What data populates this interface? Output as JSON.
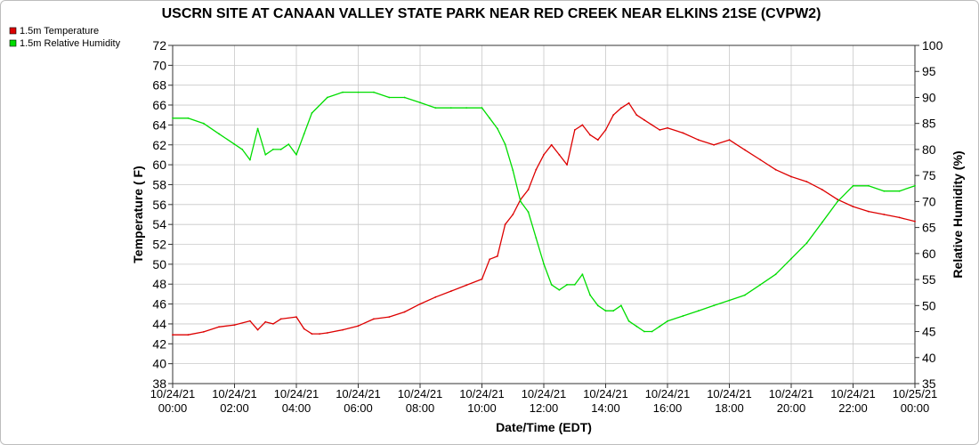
{
  "chart_data": {
    "type": "line",
    "title": "USCRN SITE AT CANAAN VALLEY STATE PARK NEAR RED CREEK NEAR ELKINS 21SE (CVPW2)",
    "xlabel": "Date/Time (EDT)",
    "ylabel": "Temperature ( F)",
    "y2label": "Relative Humidity (%)",
    "ylim": [
      38,
      72
    ],
    "y2lim": [
      35,
      100
    ],
    "xlim": [
      0,
      24
    ],
    "grid": true,
    "legend_position": "top-left",
    "yticks": [
      "38",
      "40",
      "42",
      "44",
      "46",
      "48",
      "50",
      "52",
      "54",
      "56",
      "58",
      "60",
      "62",
      "64",
      "66",
      "68",
      "70",
      "72"
    ],
    "y2ticks": [
      "35",
      "40",
      "45",
      "50",
      "55",
      "60",
      "65",
      "70",
      "75",
      "80",
      "85",
      "90",
      "95",
      "100"
    ],
    "xticks": [
      {
        "date": "10/24/21",
        "time": "00:00"
      },
      {
        "date": "10/24/21",
        "time": "02:00"
      },
      {
        "date": "10/24/21",
        "time": "04:00"
      },
      {
        "date": "10/24/21",
        "time": "06:00"
      },
      {
        "date": "10/24/21",
        "time": "08:00"
      },
      {
        "date": "10/24/21",
        "time": "10:00"
      },
      {
        "date": "10/24/21",
        "time": "12:00"
      },
      {
        "date": "10/24/21",
        "time": "14:00"
      },
      {
        "date": "10/24/21",
        "time": "16:00"
      },
      {
        "date": "10/24/21",
        "time": "18:00"
      },
      {
        "date": "10/24/21",
        "time": "20:00"
      },
      {
        "date": "10/24/21",
        "time": "22:00"
      },
      {
        "date": "10/25/21",
        "time": "00:00"
      }
    ],
    "series": [
      {
        "name": "1.5m Temperature",
        "color": "#dd0000",
        "axis": "left",
        "x": [
          0,
          0.5,
          1,
          1.5,
          2,
          2.5,
          2.75,
          3,
          3.25,
          3.5,
          4,
          4.25,
          4.5,
          4.75,
          5,
          5.5,
          6,
          6.5,
          7,
          7.5,
          8,
          8.5,
          9,
          9.5,
          10,
          10.25,
          10.5,
          10.75,
          11,
          11.25,
          11.5,
          11.75,
          12,
          12.25,
          12.5,
          12.75,
          13,
          13.25,
          13.5,
          13.75,
          14,
          14.25,
          14.5,
          14.75,
          15,
          15.25,
          15.5,
          15.75,
          16,
          16.5,
          17,
          17.5,
          18,
          18.5,
          19,
          19.5,
          20,
          20.5,
          21,
          21.5,
          22,
          22.5,
          23,
          23.5,
          24
        ],
        "values": [
          42.9,
          42.9,
          43.2,
          43.7,
          43.9,
          44.3,
          43.4,
          44.2,
          44.0,
          44.5,
          44.7,
          43.5,
          43.0,
          43.0,
          43.1,
          43.4,
          43.8,
          44.5,
          44.7,
          45.2,
          46.0,
          46.7,
          47.3,
          47.9,
          48.5,
          50.5,
          50.8,
          54.0,
          55.0,
          56.5,
          57.5,
          59.5,
          61.0,
          62.0,
          61.0,
          60.0,
          63.5,
          64.0,
          63.0,
          62.5,
          63.5,
          65.0,
          65.7,
          66.2,
          65.0,
          64.5,
          64.0,
          63.5,
          63.7,
          63.2,
          62.5,
          62.0,
          62.5,
          61.5,
          60.5,
          59.5,
          58.8,
          58.3,
          57.5,
          56.5,
          55.8,
          55.3,
          55.0,
          54.7,
          54.3
        ]
      },
      {
        "name": "1.5m Relative Humidity",
        "color": "#00dd00",
        "axis": "right",
        "x": [
          0,
          0.5,
          1,
          1.5,
          2,
          2.25,
          2.5,
          2.75,
          3,
          3.25,
          3.5,
          3.75,
          4,
          4.25,
          4.5,
          5,
          5.5,
          6,
          6.5,
          7,
          7.5,
          8,
          8.5,
          9,
          9.5,
          10,
          10.25,
          10.5,
          10.75,
          11,
          11.25,
          11.5,
          11.75,
          12,
          12.25,
          12.5,
          12.75,
          13,
          13.25,
          13.5,
          13.75,
          14,
          14.25,
          14.5,
          14.75,
          15,
          15.25,
          15.5,
          15.75,
          16,
          16.5,
          17,
          17.5,
          18,
          18.5,
          19,
          19.5,
          20,
          20.5,
          21,
          21.5,
          22,
          22.5,
          23,
          23.5,
          24
        ],
        "values": [
          86,
          86,
          85,
          83,
          81,
          80,
          78,
          84,
          79,
          80,
          80,
          81,
          79,
          83,
          87,
          90,
          91,
          91,
          91,
          90,
          90,
          89,
          88,
          88,
          88,
          88,
          86,
          84,
          81,
          76,
          70,
          68,
          63,
          58,
          54,
          53,
          54,
          54,
          56,
          52,
          50,
          49,
          49,
          50,
          47,
          46,
          45,
          45,
          46,
          47,
          48,
          49,
          50,
          51,
          52,
          54,
          56,
          59,
          62,
          66,
          70,
          73,
          73,
          72,
          72,
          73
        ]
      }
    ]
  }
}
